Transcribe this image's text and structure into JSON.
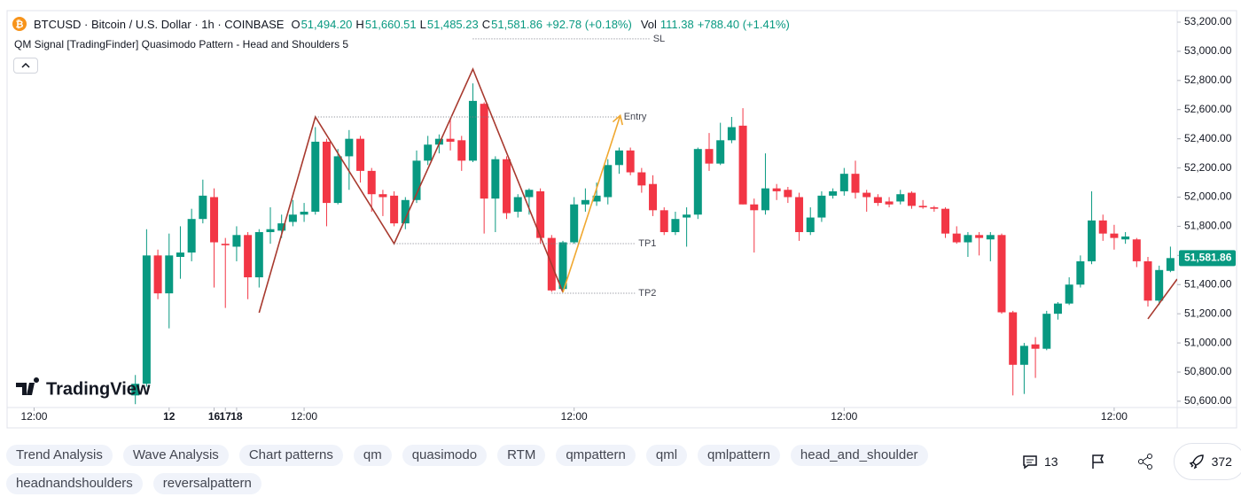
{
  "header": {
    "symbol": "BTCUSD · Bitcoin / U.S. Dollar · 1h · COINBASE",
    "ohlc": [
      {
        "label": "O",
        "value": "51,494.20"
      },
      {
        "label": "H",
        "value": "51,660.51"
      },
      {
        "label": "L",
        "value": "51,485.23"
      },
      {
        "label": "C",
        "value": "51,581.86"
      }
    ],
    "change": "+92.78 (+0.18%)",
    "vol_label": "Vol",
    "vol": "111.38",
    "vol_change": "+788.40 (+1.41%)",
    "indicator": "QM Signal [TradingFinder] Quasimodo Pattern - Head and Shoulders 5"
  },
  "chart_data": {
    "type": "candlestick",
    "watermark": "TradingView",
    "up_color": "#089981",
    "down_color": "#f23645",
    "xlim": [
      -2.4,
      101.6
    ],
    "ylim": [
      50557,
      53279
    ],
    "xticks": [
      {
        "value": 0,
        "label": "12:00"
      },
      12,
      {
        "value": 24,
        "label": "12:00"
      },
      16,
      {
        "value": 48,
        "label": "12:00"
      },
      17,
      {
        "value": 72,
        "label": "12:00"
      },
      18,
      {
        "value": 96,
        "label": "12:00"
      }
    ],
    "yticks": [
      {
        "value": 50600,
        "label": "50,600.00"
      },
      {
        "value": 50800,
        "label": "50,800.00"
      },
      {
        "value": 51000,
        "label": "51,000.00"
      },
      {
        "value": 51200,
        "label": "51,200.00"
      },
      {
        "value": 51400,
        "label": "51,400.00"
      },
      {
        "value": 51600,
        "label": "51,600.00"
      },
      {
        "value": 51800,
        "label": "51,800.00"
      },
      {
        "value": 52000,
        "label": "52,000.00"
      },
      {
        "value": 52200,
        "label": "52,200.00"
      },
      {
        "value": 52400,
        "label": "52,400.00"
      },
      {
        "value": 52600,
        "label": "52,600.00"
      },
      {
        "value": 52800,
        "label": "52,800.00"
      },
      {
        "value": 53000,
        "label": "53,000.00"
      },
      {
        "value": 53200,
        "label": "53,200.00"
      }
    ],
    "x": [
      9,
      10,
      11,
      12,
      13,
      14,
      15,
      16,
      17,
      18,
      19,
      20,
      21,
      22,
      23,
      24,
      25,
      26,
      27,
      28,
      29,
      30,
      31,
      32,
      33,
      34,
      35,
      36,
      37,
      38,
      39,
      40,
      41,
      42,
      43,
      44,
      45,
      46,
      47,
      48,
      49,
      50,
      51,
      52,
      53,
      54,
      55,
      56,
      57,
      58,
      59,
      60,
      61,
      62,
      63,
      64,
      65,
      66,
      67,
      68,
      69,
      70,
      71,
      72,
      73,
      74,
      75,
      76,
      77,
      78,
      79,
      80,
      81,
      82,
      83,
      84,
      85,
      86,
      87,
      88,
      89,
      90,
      91,
      92,
      93,
      94,
      95,
      96,
      97,
      98,
      99,
      100,
      101
    ],
    "open": [
      50640,
      50720,
      51600,
      51340,
      51590,
      51620,
      51850,
      52000,
      51680,
      51660,
      51740,
      51450,
      51760,
      51770,
      51830,
      51880,
      51900,
      52380,
      51960,
      52280,
      52400,
      52180,
      52020,
      52010,
      51820,
      51980,
      52250,
      52360,
      52400,
      52390,
      52250,
      52640,
      51990,
      52260,
      51900,
      52000,
      52040,
      51720,
      51370,
      51690,
      51950,
      51970,
      52000,
      52220,
      52320,
      52170,
      52090,
      51910,
      51760,
      51860,
      51880,
      52330,
      52230,
      52390,
      52490,
      51950,
      51910,
      52060,
      52050,
      52000,
      51760,
      51860,
      52010,
      52040,
      52160,
      52030,
      52000,
      51970,
      51970,
      52030,
      51940,
      51930,
      51920,
      51750,
      51690,
      51740,
      51710,
      51740,
      51210,
      50850,
      50990,
      50960,
      51200,
      51270,
      51400,
      51560,
      51840,
      51750,
      51710,
      51710,
      51560,
      51290,
      51494.2
    ],
    "high": [
      50780,
      51780,
      51640,
      51750,
      51800,
      51920,
      52120,
      52060,
      51720,
      51800,
      51760,
      51780,
      51930,
      51880,
      51980,
      51960,
      52480,
      52400,
      52330,
      52460,
      52420,
      52200,
      52050,
      52040,
      52000,
      52320,
      52420,
      52430,
      52540,
      52420,
      52780,
      52650,
      52280,
      52280,
      52020,
      52060,
      52060,
      51740,
      51700,
      52000,
      52060,
      52100,
      52260,
      52340,
      52340,
      52200,
      52150,
      51930,
      51900,
      51930,
      52340,
      52440,
      52510,
      52550,
      52610,
      51990,
      52300,
      52090,
      52070,
      52030,
      51930,
      52040,
      52060,
      52200,
      52250,
      52050,
      52020,
      52000,
      52050,
      52040,
      51980,
      51940,
      51930,
      51800,
      51760,
      51760,
      51760,
      51750,
      51220,
      51000,
      51040,
      51220,
      51280,
      51450,
      51600,
      52040,
      51880,
      51810,
      51760,
      51720,
      51590,
      51530,
      51660.51
    ],
    "low": [
      50580,
      50700,
      51300,
      51100,
      51440,
      51560,
      51820,
      51380,
      51240,
      51560,
      51300,
      51380,
      51680,
      51720,
      51800,
      51830,
      51880,
      51800,
      51950,
      52050,
      52100,
      51900,
      51870,
      51800,
      51780,
      51960,
      52220,
      52300,
      52320,
      52180,
      52240,
      51750,
      51760,
      51850,
      51860,
      51880,
      51680,
      51350,
      51360,
      51680,
      51900,
      51940,
      51950,
      52160,
      52150,
      52030,
      51870,
      51740,
      51740,
      51660,
      51850,
      52180,
      52220,
      52370,
      51950,
      51620,
      51880,
      51980,
      51960,
      51700,
      51740,
      51830,
      51990,
      52010,
      51990,
      51900,
      51940,
      51930,
      51950,
      51920,
      51920,
      51900,
      51720,
      51680,
      51590,
      51600,
      51560,
      51200,
      50640,
      50650,
      50760,
      50950,
      51160,
      51260,
      51380,
      51540,
      51700,
      51640,
      51680,
      51520,
      51250,
      51260,
      51485.23
    ],
    "close": [
      50720,
      51600,
      51340,
      51600,
      51620,
      51850,
      52010,
      51690,
      51670,
      51740,
      51450,
      51760,
      51780,
      51820,
      51880,
      51900,
      52380,
      51960,
      52280,
      52400,
      52180,
      52020,
      52000,
      51820,
      51980,
      52250,
      52360,
      52400,
      52380,
      52250,
      52660,
      51990,
      52260,
      51890,
      52000,
      52050,
      51720,
      51360,
      51690,
      51950,
      51980,
      52010,
      52220,
      52320,
      52170,
      52080,
      51910,
      51760,
      51850,
      51880,
      52330,
      52230,
      52390,
      52480,
      51950,
      51910,
      52060,
      52040,
      52000,
      51760,
      51860,
      52010,
      52040,
      52160,
      52030,
      52000,
      51960,
      51950,
      52020,
      51940,
      51930,
      51920,
      51750,
      51690,
      51740,
      51720,
      51740,
      51210,
      50850,
      50980,
      50960,
      51200,
      51270,
      51400,
      51560,
      51840,
      51750,
      51720,
      51730,
      51560,
      51290,
      51500,
      51581.86
    ],
    "last_label": "51,581.86",
    "pattern": [
      {
        "color": "#a83a2f",
        "x": [
          20,
          25,
          32,
          39,
          47
        ],
        "y": [
          51207,
          52550,
          51681,
          52878,
          51347
        ]
      },
      {
        "color": "#a83a2f",
        "x": [
          99,
          101.6
        ],
        "y": [
          51165,
          51438
        ]
      }
    ],
    "arrow": {
      "color": "#f0a830",
      "x": [
        47,
        52.1
      ],
      "y": [
        51347,
        52560
      ]
    },
    "levels": [
      {
        "label": "SL",
        "value": 53085,
        "x": [
          39,
          54.7
        ]
      },
      {
        "label": "Entry",
        "value": 52550,
        "x": [
          25,
          52.1
        ]
      },
      {
        "label": "TP1",
        "value": 51681,
        "x": [
          32,
          53.4
        ]
      },
      {
        "label": "TP2",
        "value": 51341,
        "x": [
          46,
          53.4
        ]
      }
    ]
  },
  "tags": [
    "Trend Analysis",
    "Wave Analysis",
    "Chart patterns",
    "qm",
    "quasimodo",
    "RTM",
    "qmpattern",
    "qml",
    "qmlpattern",
    "head_and_shoulder",
    "headnandshoulders",
    "reversalpattern"
  ],
  "actions": {
    "comments": "13",
    "boosts": "372"
  }
}
